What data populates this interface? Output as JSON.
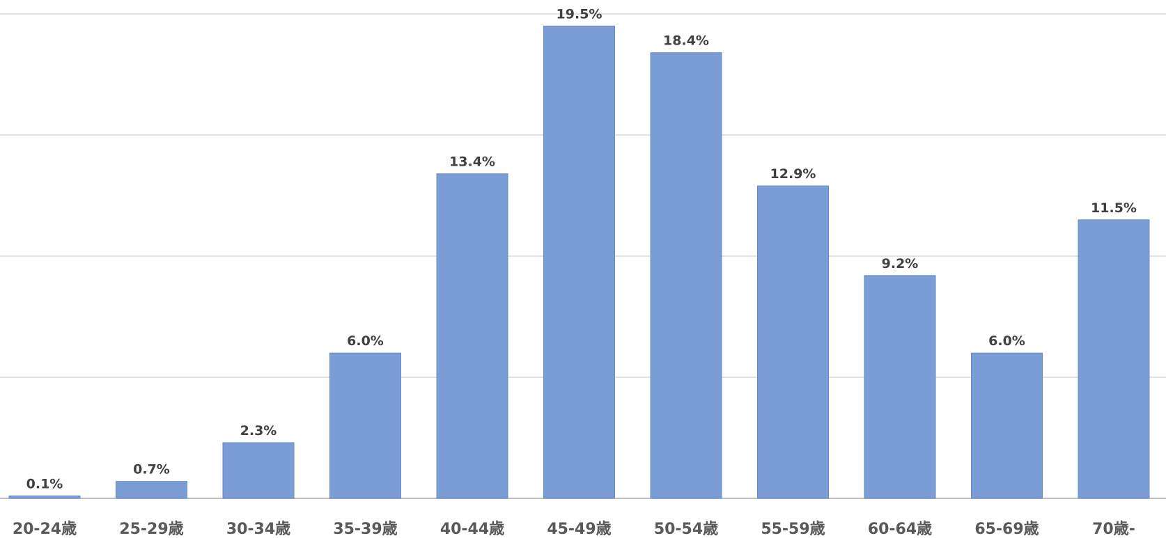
{
  "chart_data": {
    "type": "bar",
    "categories": [
      "20-24歳",
      "25-29歳",
      "30-34歳",
      "35-39歳",
      "40-44歳",
      "45-49歳",
      "50-54歳",
      "55-59歳",
      "60-64歳",
      "65-69歳",
      "70歳-"
    ],
    "values": [
      0.1,
      0.7,
      2.3,
      6.0,
      13.4,
      19.5,
      18.4,
      12.9,
      9.2,
      6.0,
      11.5
    ],
    "data_labels": [
      "0.1%",
      "0.7%",
      "2.3%",
      "6.0%",
      "13.4%",
      "19.5%",
      "18.4%",
      "12.9%",
      "9.2%",
      "6.0%",
      "11.5%"
    ],
    "ylim": [
      0,
      20
    ],
    "grid": true,
    "bar_color": "#7b9dd5"
  }
}
